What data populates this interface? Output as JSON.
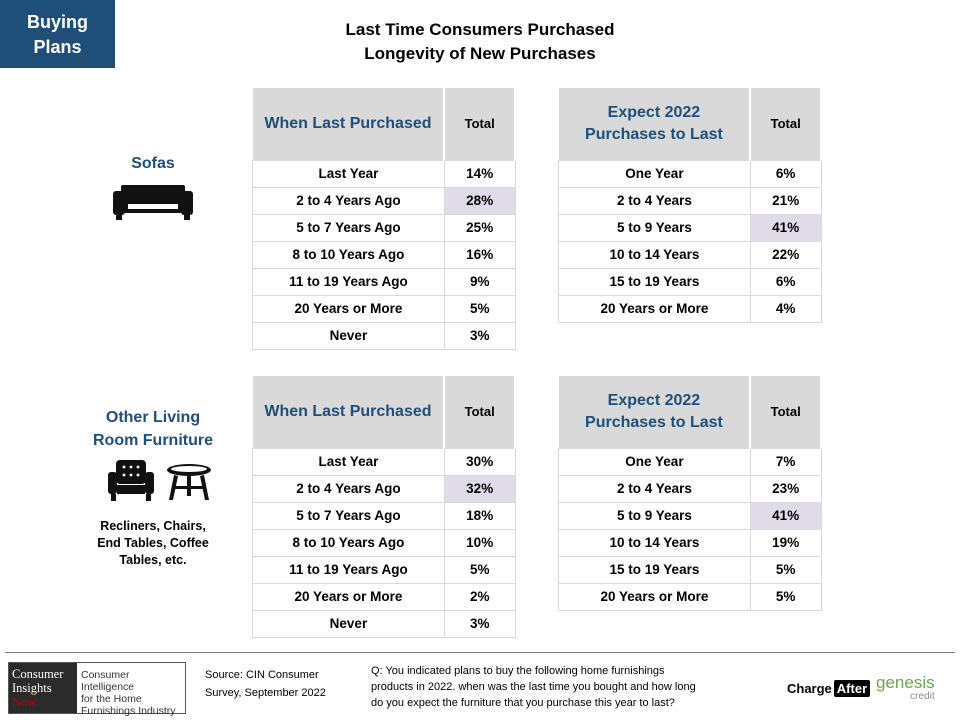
{
  "badge": {
    "line1": "Buying",
    "line2": "Plans"
  },
  "title": {
    "line1": "Last Time Consumers Purchased",
    "line2": "Longevity of New Purchases"
  },
  "sections": [
    {
      "category": [
        "Sofas"
      ],
      "icon": "sofa-icon",
      "subtitle": [],
      "last_purchased": {
        "header": "When Last Purchased",
        "total_header": "Total",
        "rows": [
          {
            "label": "Last Year",
            "value": "14%"
          },
          {
            "label": "2 to 4 Years Ago",
            "value": "28%"
          },
          {
            "label": "5 to 7 Years Ago",
            "value": "25%"
          },
          {
            "label": "8 to 10 Years Ago",
            "value": "16%"
          },
          {
            "label": "11 to 19 Years Ago",
            "value": "9%"
          },
          {
            "label": "20 Years or More",
            "value": "5%"
          },
          {
            "label": "Never",
            "value": "3%"
          }
        ],
        "highlight_row": 1
      },
      "expect": {
        "header": [
          "Expect 2022",
          "Purchases to Last"
        ],
        "total_header": "Total",
        "rows": [
          {
            "label": "One Year",
            "value": "6%"
          },
          {
            "label": "2 to 4 Years",
            "value": "21%"
          },
          {
            "label": "5 to 9 Years",
            "value": "41%"
          },
          {
            "label": "10 to 14 Years",
            "value": "22%"
          },
          {
            "label": "15 to 19 Years",
            "value": "6%"
          },
          {
            "label": "20 Years or More",
            "value": "4%"
          }
        ],
        "highlight_row": 2
      }
    },
    {
      "category": [
        "Other Living",
        "Room Furniture"
      ],
      "icon": "armchair-and-table-icon",
      "subtitle": [
        "Recliners, Chairs,",
        "End Tables, Coffee",
        "Tables, etc."
      ],
      "last_purchased": {
        "header": "When Last Purchased",
        "total_header": "Total",
        "rows": [
          {
            "label": "Last Year",
            "value": "30%"
          },
          {
            "label": "2 to 4 Years Ago",
            "value": "32%"
          },
          {
            "label": "5 to 7 Years Ago",
            "value": "18%"
          },
          {
            "label": "8 to 10 Years Ago",
            "value": "10%"
          },
          {
            "label": "11 to 19 Years Ago",
            "value": "5%"
          },
          {
            "label": "20 Years or More",
            "value": "2%"
          },
          {
            "label": "Never",
            "value": "3%"
          }
        ],
        "highlight_row": 1
      },
      "expect": {
        "header": [
          "Expect 2022",
          "Purchases to Last"
        ],
        "total_header": "Total",
        "rows": [
          {
            "label": "One Year",
            "value": "7%"
          },
          {
            "label": "2 to 4 Years",
            "value": "23%"
          },
          {
            "label": "5 to 9 Years",
            "value": "41%"
          },
          {
            "label": "10 to 14 Years",
            "value": "19%"
          },
          {
            "label": "15 to 19 Years",
            "value": "5%"
          },
          {
            "label": "20 Years or More",
            "value": "5%"
          }
        ],
        "highlight_row": 2
      }
    }
  ],
  "colors": {
    "accent": "#1f4e79",
    "header_bg": "#d9d9d9",
    "highlight": "#e0dbe9"
  },
  "footer": {
    "logo": {
      "left": [
        "Consumer",
        "Insights",
        "Now"
      ],
      "right": [
        "Consumer Intelligence",
        "for the Home",
        "Furnishings Industry"
      ]
    },
    "source": [
      "Source: CIN Consumer",
      "Survey, September 2022"
    ],
    "question": [
      "Q: You indicated plans to buy the following home furnishings",
      "products in 2022. when was the last time you bought and how long",
      "do you expect the furniture that you purchase this year to last?"
    ],
    "chargeafter": {
      "charge": "Charge",
      "after": "After"
    },
    "genesis": {
      "name": "genesis",
      "tag": "credit"
    }
  }
}
